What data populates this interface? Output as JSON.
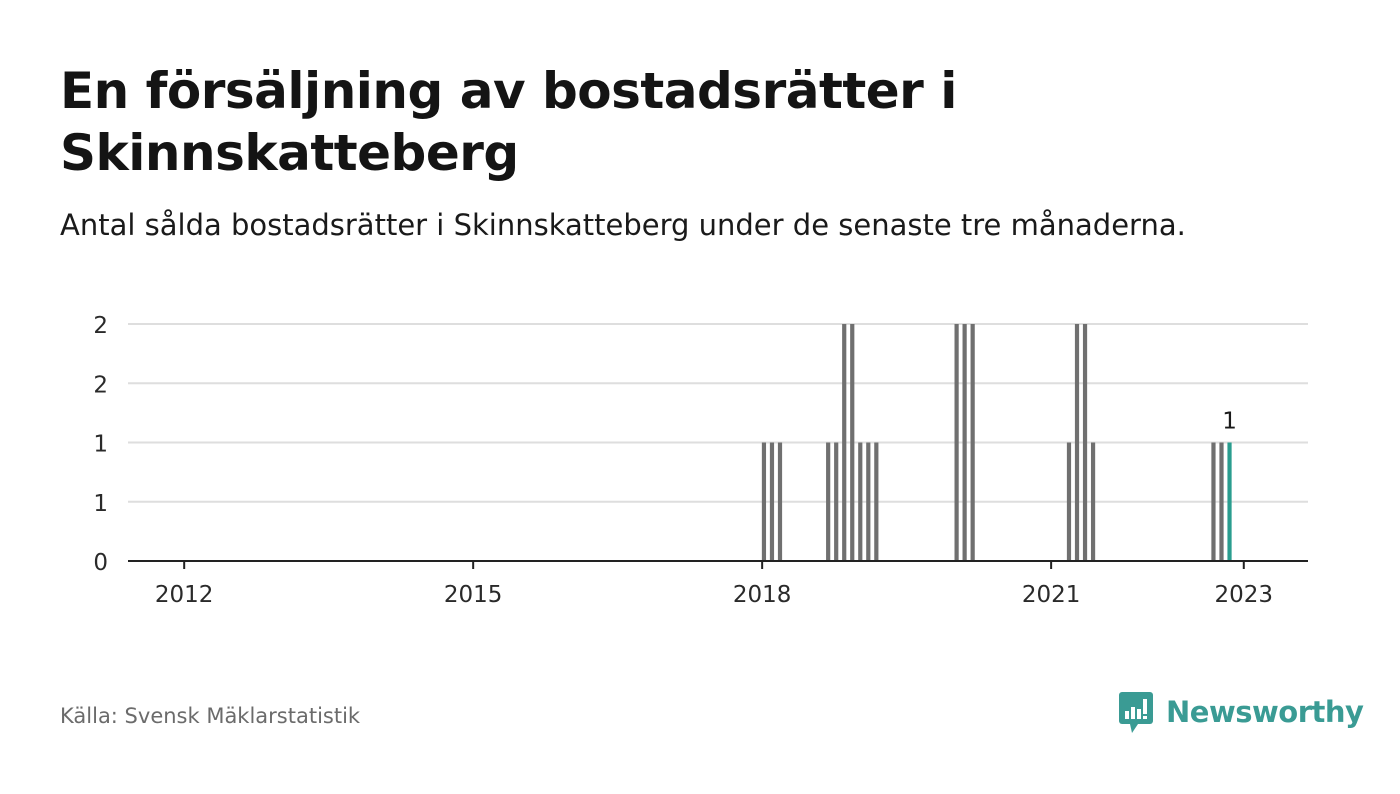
{
  "title": "En försäljning av bostadsrätter i Skinnskatteberg",
  "subtitle": "Antal sålda bostadsrätter i Skinnskatteberg under de senaste tre månaderna.",
  "source": "Källa: Svensk Mäklarstatistik",
  "brand": {
    "name": "Newsworthy",
    "icon": "newsworthy-chart-logo-icon",
    "color": "#3a9b94"
  },
  "colors": {
    "bar": "#707070",
    "highlight": "#2a9d8f",
    "grid": "#dedede",
    "axis": "#222222"
  },
  "chart_data": {
    "type": "bar",
    "title": "",
    "xlabel": "",
    "ylabel": "",
    "ylim": [
      0,
      2
    ],
    "y_tick_values": [
      0,
      0.5,
      1,
      1.5,
      2
    ],
    "y_tick_labels": [
      "0",
      "1",
      "1",
      "2",
      "2"
    ],
    "x_ticks": [
      "2012",
      "2015",
      "2018",
      "2021",
      "2023"
    ],
    "x_range": [
      "2011-06",
      "2023-09"
    ],
    "grid": true,
    "series": [
      {
        "values": [
          {
            "x": "2018-01",
            "y": 1
          },
          {
            "x": "2018-02",
            "y": 1
          },
          {
            "x": "2018-03",
            "y": 1
          },
          {
            "x": "2018-09",
            "y": 1
          },
          {
            "x": "2018-10",
            "y": 1
          },
          {
            "x": "2018-11",
            "y": 2
          },
          {
            "x": "2018-12",
            "y": 2
          },
          {
            "x": "2019-01",
            "y": 1
          },
          {
            "x": "2019-02",
            "y": 1
          },
          {
            "x": "2019-03",
            "y": 1
          },
          {
            "x": "2020-01",
            "y": 2
          },
          {
            "x": "2020-02",
            "y": 2
          },
          {
            "x": "2020-03",
            "y": 2
          },
          {
            "x": "2021-03",
            "y": 1
          },
          {
            "x": "2021-04",
            "y": 2
          },
          {
            "x": "2021-05",
            "y": 2
          },
          {
            "x": "2021-06",
            "y": 1
          },
          {
            "x": "2022-09",
            "y": 1
          },
          {
            "x": "2022-10",
            "y": 1
          },
          {
            "x": "2022-11",
            "y": 1
          }
        ]
      }
    ],
    "highlight": {
      "x": "2022-11",
      "y": 1,
      "label": "1"
    }
  }
}
